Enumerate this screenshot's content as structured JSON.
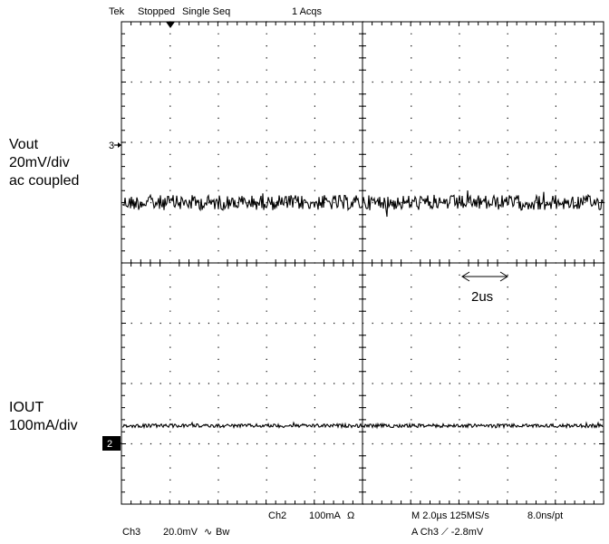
{
  "header": {
    "brand": "Tek",
    "status": "Stopped",
    "mode": "Single Seq",
    "acqs": "1 Acqs"
  },
  "annotations": {
    "vout_label": [
      "Vout",
      "20mV/div",
      "ac coupled"
    ],
    "iout_label": [
      "IOUT",
      "100mA/div"
    ],
    "time_span": "2us",
    "ch3_marker": "3",
    "ch2_marker": "2"
  },
  "footer": {
    "ch3_name": "Ch3",
    "ch3_scale": "20.0mV",
    "ch3_coupling": "∿",
    "ch3_bw": "Bw",
    "ch2_name": "Ch2",
    "ch2_scale": "100mA",
    "ch2_unit": "Ω",
    "timebase": "M 2.0µs 125MS/s",
    "record": "8.0ns/pt",
    "trigger": "A  Ch3  ⟋  -2.8mV"
  },
  "chart_data": {
    "type": "line",
    "divisions": {
      "x": 10,
      "y": 8
    },
    "xlim": [
      0,
      20
    ],
    "x_unit": "us",
    "series": [
      {
        "name": "Vout",
        "level_div": 5.0,
        "noise_pp_div": 0.25,
        "color": "#000000"
      },
      {
        "name": "IOUT",
        "level_div": 1.3,
        "noise_pp_div": 0.06,
        "color": "#000000"
      }
    ],
    "time_marker_us": [
      14,
      16
    ],
    "grid": true
  }
}
